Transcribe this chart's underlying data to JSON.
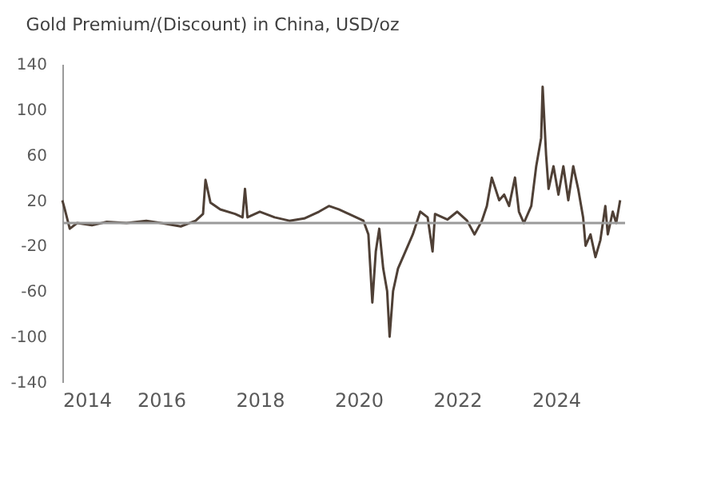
{
  "chart_data": {
    "type": "line",
    "title": "Gold Premium/(Discount) in China, USD/oz",
    "x": [
      2014.0,
      2014.05,
      2014.15,
      2014.3,
      2014.6,
      2014.9,
      2015.3,
      2015.7,
      2016.0,
      2016.4,
      2016.7,
      2016.85,
      2016.9,
      2017.0,
      2017.2,
      2017.5,
      2017.65,
      2017.7,
      2017.75,
      2018.0,
      2018.3,
      2018.6,
      2018.9,
      2019.2,
      2019.4,
      2019.6,
      2019.9,
      2020.1,
      2020.2,
      2020.28,
      2020.35,
      2020.42,
      2020.5,
      2020.58,
      2020.63,
      2020.7,
      2020.8,
      2020.95,
      2021.1,
      2021.25,
      2021.4,
      2021.5,
      2021.55,
      2021.8,
      2022.0,
      2022.2,
      2022.35,
      2022.5,
      2022.6,
      2022.7,
      2022.85,
      2022.95,
      2023.05,
      2023.17,
      2023.25,
      2023.35,
      2023.5,
      2023.6,
      2023.7,
      2023.73,
      2023.8,
      2023.85,
      2023.95,
      2024.05,
      2024.15,
      2024.25,
      2024.35,
      2024.45,
      2024.55,
      2024.6,
      2024.7,
      2024.8,
      2024.9,
      2025.0,
      2025.05,
      2025.15,
      2025.22,
      2025.3
    ],
    "series": [
      {
        "color": "#4f4036",
        "values": [
          20,
          12,
          -5,
          0,
          -2,
          1,
          0,
          2,
          0,
          -3,
          2,
          8,
          38,
          18,
          12,
          8,
          5,
          30,
          5,
          10,
          5,
          2,
          4,
          10,
          15,
          12,
          6,
          2,
          -10,
          -70,
          -25,
          -5,
          -40,
          -60,
          -100,
          -60,
          -40,
          -25,
          -10,
          10,
          5,
          -25,
          8,
          3,
          10,
          2,
          -10,
          2,
          15,
          40,
          20,
          25,
          15,
          40,
          10,
          0,
          15,
          50,
          75,
          120,
          60,
          30,
          50,
          25,
          50,
          20,
          50,
          30,
          5,
          -20,
          -10,
          -30,
          -15,
          15,
          -10,
          10,
          0,
          20
        ]
      }
    ],
    "xlim": [
      2014,
      2025.4
    ],
    "xticks": [
      2014,
      2016,
      2018,
      2020,
      2022,
      2024
    ],
    "ylim": [
      -140,
      140
    ],
    "yticks": [
      -140,
      -100,
      -60,
      -20,
      20,
      60,
      100,
      140
    ],
    "ref_lines": [
      {
        "axis": "y",
        "value": 0,
        "color": "#9a9a9a"
      }
    ],
    "grid": false,
    "marker": "none",
    "line_style": "solid"
  }
}
